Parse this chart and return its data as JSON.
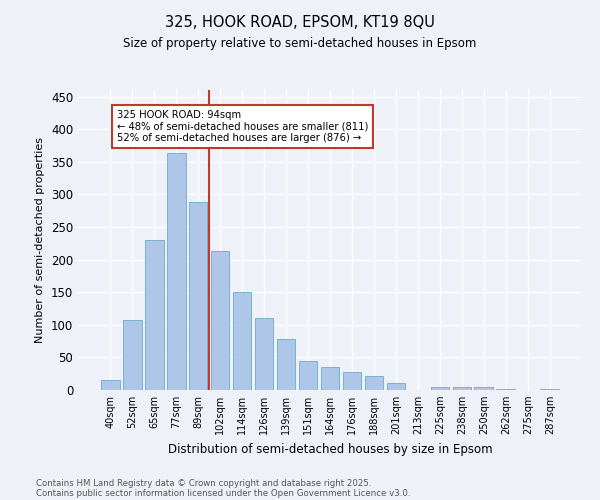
{
  "title1": "325, HOOK ROAD, EPSOM, KT19 8QU",
  "title2": "Size of property relative to semi-detached houses in Epsom",
  "xlabel": "Distribution of semi-detached houses by size in Epsom",
  "ylabel": "Number of semi-detached properties",
  "bar_labels": [
    "40sqm",
    "52sqm",
    "65sqm",
    "77sqm",
    "89sqm",
    "102sqm",
    "114sqm",
    "126sqm",
    "139sqm",
    "151sqm",
    "164sqm",
    "176sqm",
    "188sqm",
    "201sqm",
    "213sqm",
    "225sqm",
    "238sqm",
    "250sqm",
    "262sqm",
    "275sqm",
    "287sqm"
  ],
  "bar_values": [
    15,
    108,
    230,
    363,
    288,
    213,
    150,
    111,
    78,
    44,
    35,
    27,
    21,
    10,
    0,
    5,
    5,
    4,
    2,
    0,
    2
  ],
  "bar_color": "#aec6e8",
  "bar_edge_color": "#6aabd2",
  "vline_x": 4.5,
  "vline_color": "#c0392b",
  "annotation_title": "325 HOOK ROAD: 94sqm",
  "annotation_line1": "← 48% of semi-detached houses are smaller (811)",
  "annotation_line2": "52% of semi-detached houses are larger (876) →",
  "annotation_box_color": "#ffffff",
  "annotation_box_edge": "#c0392b",
  "ylim": [
    0,
    460
  ],
  "yticks": [
    0,
    50,
    100,
    150,
    200,
    250,
    300,
    350,
    400,
    450
  ],
  "footnote1": "Contains HM Land Registry data © Crown copyright and database right 2025.",
  "footnote2": "Contains public sector information licensed under the Open Government Licence v3.0.",
  "bg_color": "#eef2f8",
  "plot_bg_color": "#eef2f8"
}
